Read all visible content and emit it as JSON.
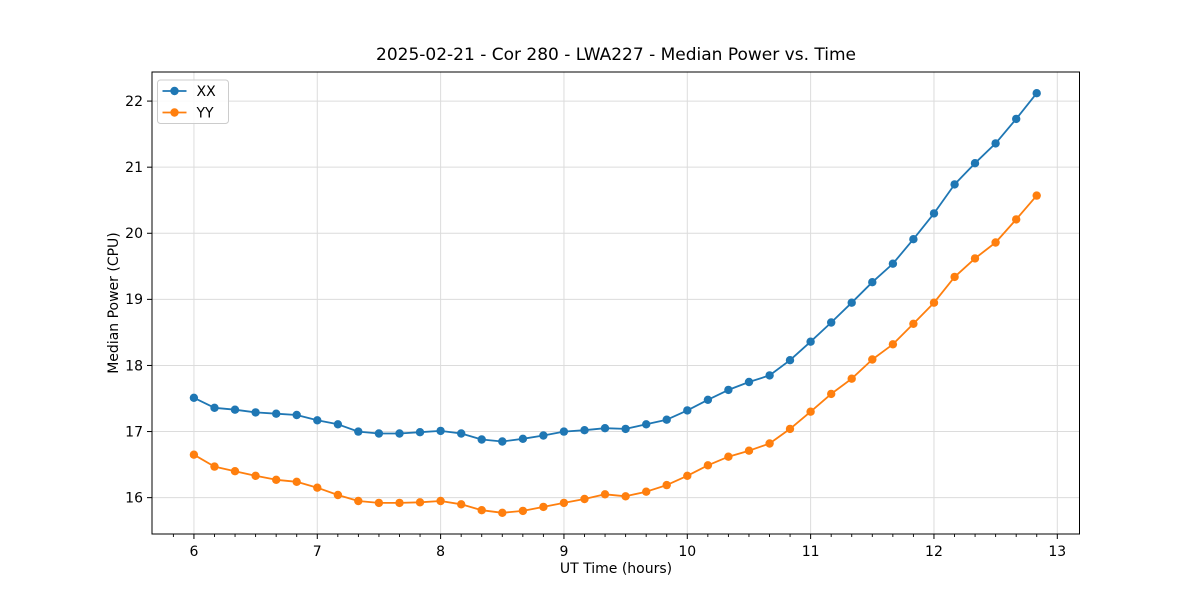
{
  "chart_data": {
    "type": "line",
    "title": "2025-02-21 - Cor 280 - LWA227 - Median Power vs. Time",
    "xlabel": "UT Time (hours)",
    "ylabel": "Median Power (CPU)",
    "xlim": [
      5.66,
      13.18
    ],
    "ylim": [
      15.45,
      22.44
    ],
    "x_ticks": [
      6,
      7,
      8,
      9,
      10,
      11,
      12,
      13
    ],
    "y_ticks": [
      16,
      17,
      18,
      19,
      20,
      21,
      22
    ],
    "x_minor_ticks_per_hour": 6,
    "grid": true,
    "legend_position": "upper-left",
    "x": [
      6.0,
      6.167,
      6.333,
      6.5,
      6.667,
      6.833,
      7.0,
      7.167,
      7.333,
      7.5,
      7.667,
      7.833,
      8.0,
      8.167,
      8.333,
      8.5,
      8.667,
      8.833,
      9.0,
      9.167,
      9.333,
      9.5,
      9.667,
      9.833,
      10.0,
      10.167,
      10.333,
      10.5,
      10.667,
      10.833,
      11.0,
      11.167,
      11.333,
      11.5,
      11.667,
      11.833,
      12.0,
      12.167,
      12.333,
      12.5,
      12.667,
      12.833
    ],
    "series": [
      {
        "name": "XX",
        "color": "#1f77b4",
        "values": [
          17.51,
          17.36,
          17.33,
          17.29,
          17.27,
          17.25,
          17.17,
          17.11,
          17.0,
          16.97,
          16.97,
          16.99,
          17.01,
          16.97,
          16.88,
          16.85,
          16.89,
          16.94,
          17.0,
          17.02,
          17.05,
          17.04,
          17.11,
          17.18,
          17.32,
          17.48,
          17.63,
          17.75,
          17.85,
          18.08,
          18.36,
          18.65,
          18.95,
          19.26,
          19.54,
          19.91,
          20.3,
          20.74,
          21.06,
          21.36,
          21.73,
          22.12
        ]
      },
      {
        "name": "YY",
        "color": "#ff7f0e",
        "values": [
          16.65,
          16.47,
          16.4,
          16.33,
          16.27,
          16.24,
          16.15,
          16.04,
          15.95,
          15.92,
          15.92,
          15.93,
          15.95,
          15.9,
          15.81,
          15.77,
          15.8,
          15.86,
          15.92,
          15.98,
          16.05,
          16.02,
          16.09,
          16.19,
          16.33,
          16.49,
          16.62,
          16.71,
          16.82,
          17.04,
          17.3,
          17.57,
          17.8,
          18.09,
          18.32,
          18.63,
          18.95,
          19.34,
          19.62,
          19.86,
          20.21,
          20.57
        ]
      }
    ]
  },
  "style": {
    "grid_color": "#dcdcdc",
    "spine_color": "#000000",
    "legend_border_color": "#cccccc",
    "legend_bg": "rgba(255,255,255,0.85)"
  }
}
